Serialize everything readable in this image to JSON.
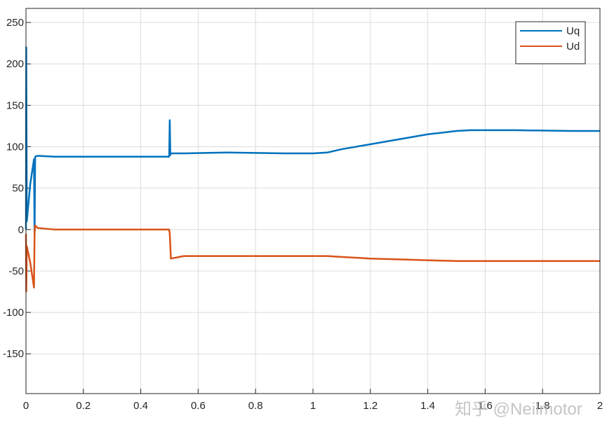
{
  "chart_data": {
    "type": "line",
    "x": [
      0,
      0.001,
      0.003,
      0.015,
      0.028,
      0.03,
      0.032,
      0.04,
      0.1,
      0.2,
      0.3,
      0.4,
      0.499,
      0.501,
      0.503,
      0.505,
      0.55,
      0.7,
      0.9,
      1.0,
      1.05,
      1.1,
      1.2,
      1.3,
      1.4,
      1.5,
      1.55,
      1.7,
      1.9,
      2
    ],
    "series": [
      {
        "name": "Uq",
        "color": "#0072bd",
        "values": [
          0,
          220,
          10,
          55,
          85,
          -10,
          88,
          89,
          88,
          88,
          88,
          88,
          88,
          132,
          90,
          92,
          92,
          93,
          92,
          92,
          93,
          97,
          103,
          109,
          115,
          119,
          120,
          120,
          119,
          119
        ]
      },
      {
        "name": "Ud",
        "color": "#d95319",
        "values": [
          -5,
          -75,
          -20,
          -40,
          -70,
          -5,
          5,
          2,
          0,
          0,
          0,
          0,
          0,
          -5,
          -20,
          -35,
          -32,
          -32,
          -32,
          -32,
          -32,
          -33,
          -35,
          -36,
          -37,
          -38,
          -38,
          -38,
          -38,
          -38
        ]
      }
    ],
    "xlim": [
      0,
      2
    ],
    "xticks": [
      0,
      0.2,
      0.4,
      0.6,
      0.8,
      1,
      1.2,
      1.4,
      1.6,
      1.8,
      2
    ],
    "ylim": [
      -198,
      267
    ],
    "yticks": [
      -150,
      -100,
      -50,
      0,
      50,
      100,
      150,
      200,
      250
    ],
    "grid": true,
    "legend": "upper right",
    "watermark": "知乎 @Neilmotor"
  }
}
